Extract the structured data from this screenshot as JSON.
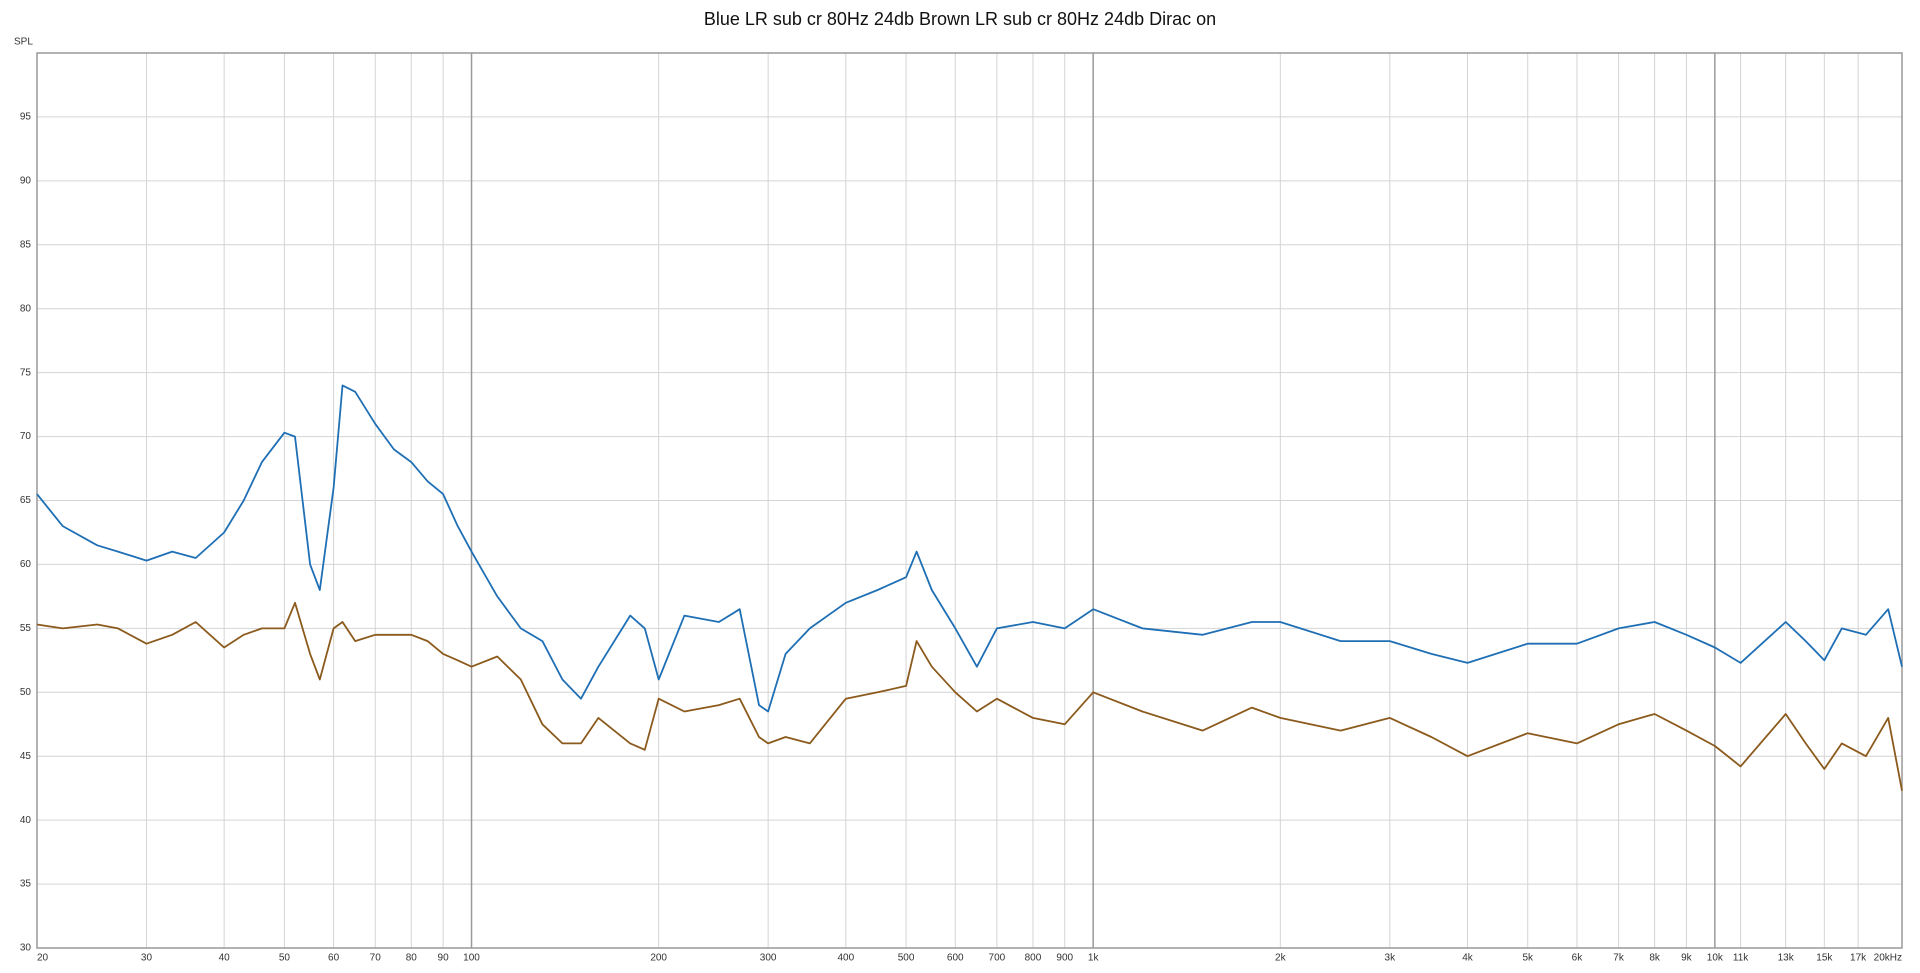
{
  "chart_data": {
    "type": "line",
    "title": "Blue LR sub cr 80Hz 24db Brown LR sub cr 80Hz 24db Dirac on",
    "y_label": "SPL",
    "x_scale": "log",
    "grid": true,
    "x": [
      20,
      22,
      25,
      27,
      30,
      33,
      36,
      40,
      43,
      46,
      50,
      52,
      55,
      57,
      60,
      62,
      65,
      70,
      75,
      80,
      85,
      90,
      95,
      100,
      110,
      120,
      130,
      140,
      150,
      160,
      180,
      190,
      200,
      220,
      250,
      270,
      290,
      300,
      320,
      350,
      400,
      450,
      500,
      520,
      550,
      600,
      650,
      700,
      800,
      900,
      1000,
      1200,
      1500,
      1800,
      2000,
      2500,
      3000,
      3500,
      4000,
      5000,
      6000,
      7000,
      8000,
      9000,
      10000,
      11000,
      13000,
      14000,
      15000,
      16000,
      17500,
      19000,
      20000
    ],
    "series": [
      {
        "color": "#1f6fb5",
        "values": [
          65.5,
          63,
          61.5,
          61,
          60.3,
          61,
          60.5,
          62.5,
          65,
          68,
          70.3,
          70,
          60,
          58,
          66,
          74,
          73.5,
          71,
          69,
          68,
          66.5,
          65.5,
          63,
          61,
          57.5,
          55,
          54,
          51,
          49.5,
          52,
          56,
          55,
          51,
          56,
          55.5,
          56.5,
          49,
          48.5,
          53,
          55,
          57,
          58,
          59,
          61,
          58,
          55,
          52,
          55,
          55.5,
          55,
          56.5,
          55,
          54.5,
          55.5,
          55.5,
          54,
          54,
          53,
          52.3,
          53.8,
          53.8,
          55,
          55.5,
          54.5,
          53.5,
          52.3,
          55.5,
          54,
          52.5,
          55,
          54.5,
          56.5,
          52
        ]
      },
      {
        "color": "#8b5a1c",
        "values": [
          55.3,
          55,
          55.3,
          55,
          53.8,
          54.5,
          55.5,
          53.5,
          54.5,
          55,
          55,
          57,
          53,
          51,
          55,
          55.5,
          54,
          54.5,
          54.5,
          54.5,
          54,
          53,
          52.5,
          52,
          52.8,
          51,
          47.5,
          46,
          46,
          48,
          46,
          45.5,
          49.5,
          48.5,
          49,
          49.5,
          46.5,
          46,
          46.5,
          46,
          49.5,
          50,
          50.5,
          54,
          52,
          50,
          48.5,
          49.5,
          48,
          47.5,
          50,
          48.5,
          47,
          48.8,
          48,
          47,
          48,
          46.5,
          45,
          46.8,
          46,
          47.5,
          48.3,
          47,
          45.8,
          44.2,
          48.3,
          46,
          44,
          46,
          45,
          48,
          42.3
        ]
      }
    ],
    "xlim": [
      20,
      20000
    ],
    "xticks": [
      20,
      30,
      40,
      50,
      60,
      70,
      80,
      90,
      100,
      200,
      300,
      400,
      500,
      600,
      700,
      800,
      900,
      {
        "value": 1000,
        "label": "1k"
      },
      {
        "value": 2000,
        "label": "2k"
      },
      {
        "value": 3000,
        "label": "3k"
      },
      {
        "value": 4000,
        "label": "4k"
      },
      {
        "value": 5000,
        "label": "5k"
      },
      {
        "value": 6000,
        "label": "6k"
      },
      {
        "value": 7000,
        "label": "7k"
      },
      {
        "value": 8000,
        "label": "8k"
      },
      {
        "value": 9000,
        "label": "9k"
      },
      {
        "value": 10000,
        "label": "10k"
      },
      {
        "value": 11000,
        "label": "11k"
      },
      {
        "value": 13000,
        "label": "13k"
      },
      {
        "value": 15000,
        "label": "15k"
      },
      {
        "value": 17000,
        "label": "17k"
      },
      {
        "value": 20000,
        "label": "20kHz"
      }
    ],
    "ylim": [
      30,
      100
    ],
    "yticks": [
      30,
      35,
      40,
      45,
      50,
      55,
      60,
      65,
      70,
      75,
      80,
      85,
      90,
      95
    ]
  }
}
